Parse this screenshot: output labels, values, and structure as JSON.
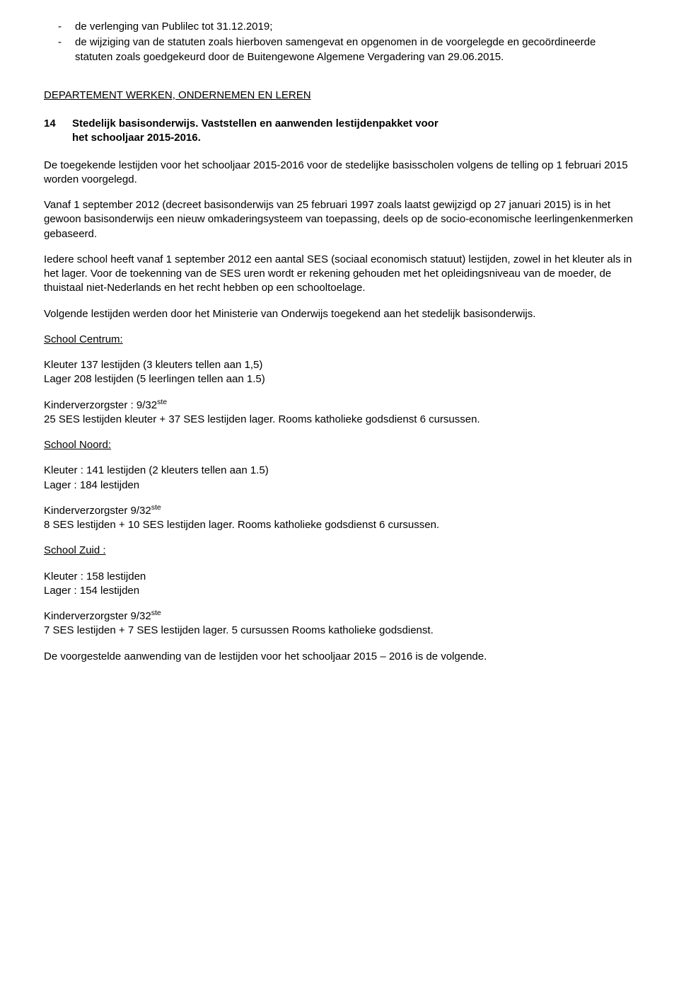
{
  "top_list": {
    "item1": "de verlenging van Publilec tot 31.12.2019;",
    "item2": "de wijziging van de statuten zoals hierboven samengevat en opgenomen in de voorgelegde en gecoördineerde statuten zoals goedgekeurd door de Buitengewone Algemene Vergadering van 29.06.2015."
  },
  "dept_heading": "DEPARTEMENT WERKEN, ONDERNEMEN EN LEREN",
  "item14": {
    "number": "14",
    "title_line1": "Stedelijk basisonderwijs. Vaststellen en aanwenden lestijdenpakket voor",
    "title_line2": "het schooljaar 2015-2016."
  },
  "para1": "De toegekende lestijden voor het schooljaar 2015-2016 voor de stedelijke basisscholen volgens de telling op 1 februari 2015 worden voorgelegd.",
  "para2": "Vanaf 1 september 2012 (decreet basisonderwijs van 25 februari 1997 zoals laatst gewijzigd op 27 januari 2015) is in het gewoon basisonderwijs een nieuw omkaderingsysteem van toepassing, deels op de socio-economische leerlingenkenmerken gebaseerd.",
  "para3": "Iedere school heeft vanaf 1 september 2012 een aantal SES (sociaal economisch statuut) lestijden, zowel in het kleuter als in het lager. Voor de toekenning van de SES uren wordt er rekening gehouden met het opleidingsniveau van de moeder, de thuistaal niet-Nederlands en het recht hebben op een schooltoelage.",
  "para4": "Volgende lestijden werden door het Ministerie van Onderwijs toegekend aan het stedelijk basisonderwijs.",
  "schools": {
    "centrum": {
      "heading": "School Centrum:",
      "kleuter": "Kleuter 137 lestijden (3 kleuters tellen aan 1,5)",
      "lager": "Lager   208 lestijden (5 leerlingen tellen aan 1.5)",
      "kv_label": "Kinderverzorgster : 9/32",
      "kv_sup": "ste",
      "ses": "25 SES lestijden kleuter + 37 SES lestijden lager. Rooms katholieke godsdienst 6 cursussen."
    },
    "noord": {
      "heading": "School Noord:",
      "kleuter": "Kleuter : 141 lestijden (2 kleuters tellen aan 1.5)",
      "lager": "Lager : 184 lestijden",
      "kv_label": "Kinderverzorgster 9/32",
      "kv_sup": "ste",
      "ses": "8 SES lestijden + 10 SES lestijden lager. Rooms katholieke godsdienst 6 cursussen."
    },
    "zuid": {
      "heading": "School Zuid :",
      "kleuter": "Kleuter : 158 lestijden",
      "lager": "Lager   : 154 lestijden",
      "kv_label": "Kinderverzorgster 9/32",
      "kv_sup": "ste",
      "ses": "7 SES lestijden + 7 SES lestijden lager. 5 cursussen Rooms katholieke godsdienst."
    }
  },
  "final_para": "De voorgestelde aanwending van de lestijden voor het schooljaar 2015 – 2016 is de volgende."
}
